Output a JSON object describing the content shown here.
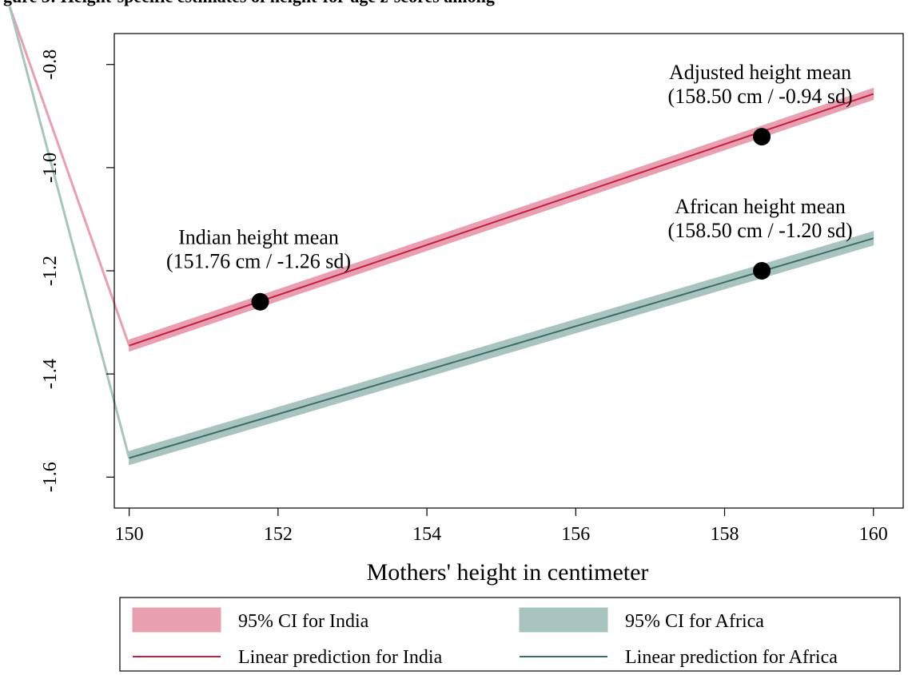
{
  "chart_data": {
    "type": "line",
    "title": "gure 3: Height-specific estimates of height-for-age z-scores among",
    "xlabel": "Mothers' height in centimeter",
    "ylabel": "",
    "xlim": [
      149.8,
      160.4
    ],
    "ylim": [
      -1.66,
      -0.74
    ],
    "x_ticks": [
      150,
      152,
      154,
      156,
      158,
      160
    ],
    "y_ticks": [
      -1.6,
      -1.4,
      -1.2,
      -1.0,
      -0.8
    ],
    "x_tick_labels": [
      "150",
      "152",
      "154",
      "156",
      "158",
      "160"
    ],
    "y_tick_labels": [
      "-1.6",
      "-1.4",
      "-1.2",
      "-1.0",
      "-0.8"
    ],
    "grid": false,
    "legend_position": "bottom",
    "series": [
      {
        "name": "Linear prediction for India",
        "ci_name": "95% CI for India",
        "color": "#c41e46",
        "ci_color": "#e8a0b0",
        "x": [
          150,
          160
        ],
        "y": [
          -1.345,
          -0.857
        ],
        "ci_half_width": 0.011
      },
      {
        "name": "Linear prediction for Africa",
        "ci_name": "95% CI for Africa",
        "color": "#3a6e66",
        "ci_color": "#a9c4bf",
        "x": [
          150,
          160
        ],
        "y": [
          -1.563,
          -1.137
        ],
        "ci_half_width": 0.013
      }
    ],
    "markers": [
      {
        "series": 0,
        "x": 151.76,
        "y": -1.26,
        "label_lines": [
          "Indian height mean",
          "(151.76 cm / -1.26 sd)"
        ]
      },
      {
        "series": 0,
        "x": 158.5,
        "y": -0.94,
        "label_lines": [
          "Adjusted height mean",
          "(158.50 cm / -0.94 sd)"
        ]
      },
      {
        "series": 1,
        "x": 158.5,
        "y": -1.2,
        "label_lines": [
          "African height mean",
          "(158.50 cm / -1.20 sd)"
        ]
      }
    ]
  }
}
